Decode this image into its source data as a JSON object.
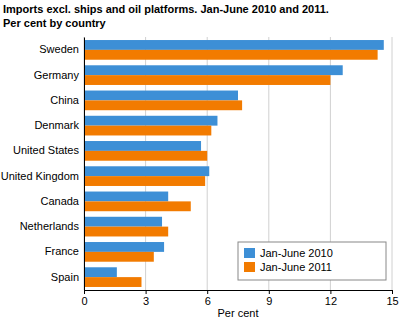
{
  "chart_data": {
    "type": "bar",
    "orientation": "horizontal",
    "title": "Imports excl. ships and oil platforms. Jan-June 2010 and 2011.",
    "subtitle": "Per cent by country",
    "x_label": "Per cent",
    "categories": [
      "Sweden",
      "Germany",
      "China",
      "Denmark",
      "United States",
      "United Kingdom",
      "Canada",
      "Netherlands",
      "France",
      "Spain"
    ],
    "series": [
      {
        "name": "Jan-June 2010",
        "color": "#3d8fd6",
        "values": [
          14.6,
          12.6,
          7.5,
          6.5,
          5.7,
          6.1,
          4.1,
          3.8,
          3.9,
          1.6
        ]
      },
      {
        "name": "Jan-June 2011",
        "color": "#f27b00",
        "values": [
          14.3,
          12.0,
          7.7,
          6.2,
          6.0,
          5.9,
          5.2,
          4.1,
          3.4,
          2.8
        ]
      }
    ],
    "xlim": [
      0,
      15
    ],
    "xticks": [
      0,
      3,
      6,
      9,
      12,
      15
    ],
    "grid": true,
    "legend": "bottom-right"
  }
}
